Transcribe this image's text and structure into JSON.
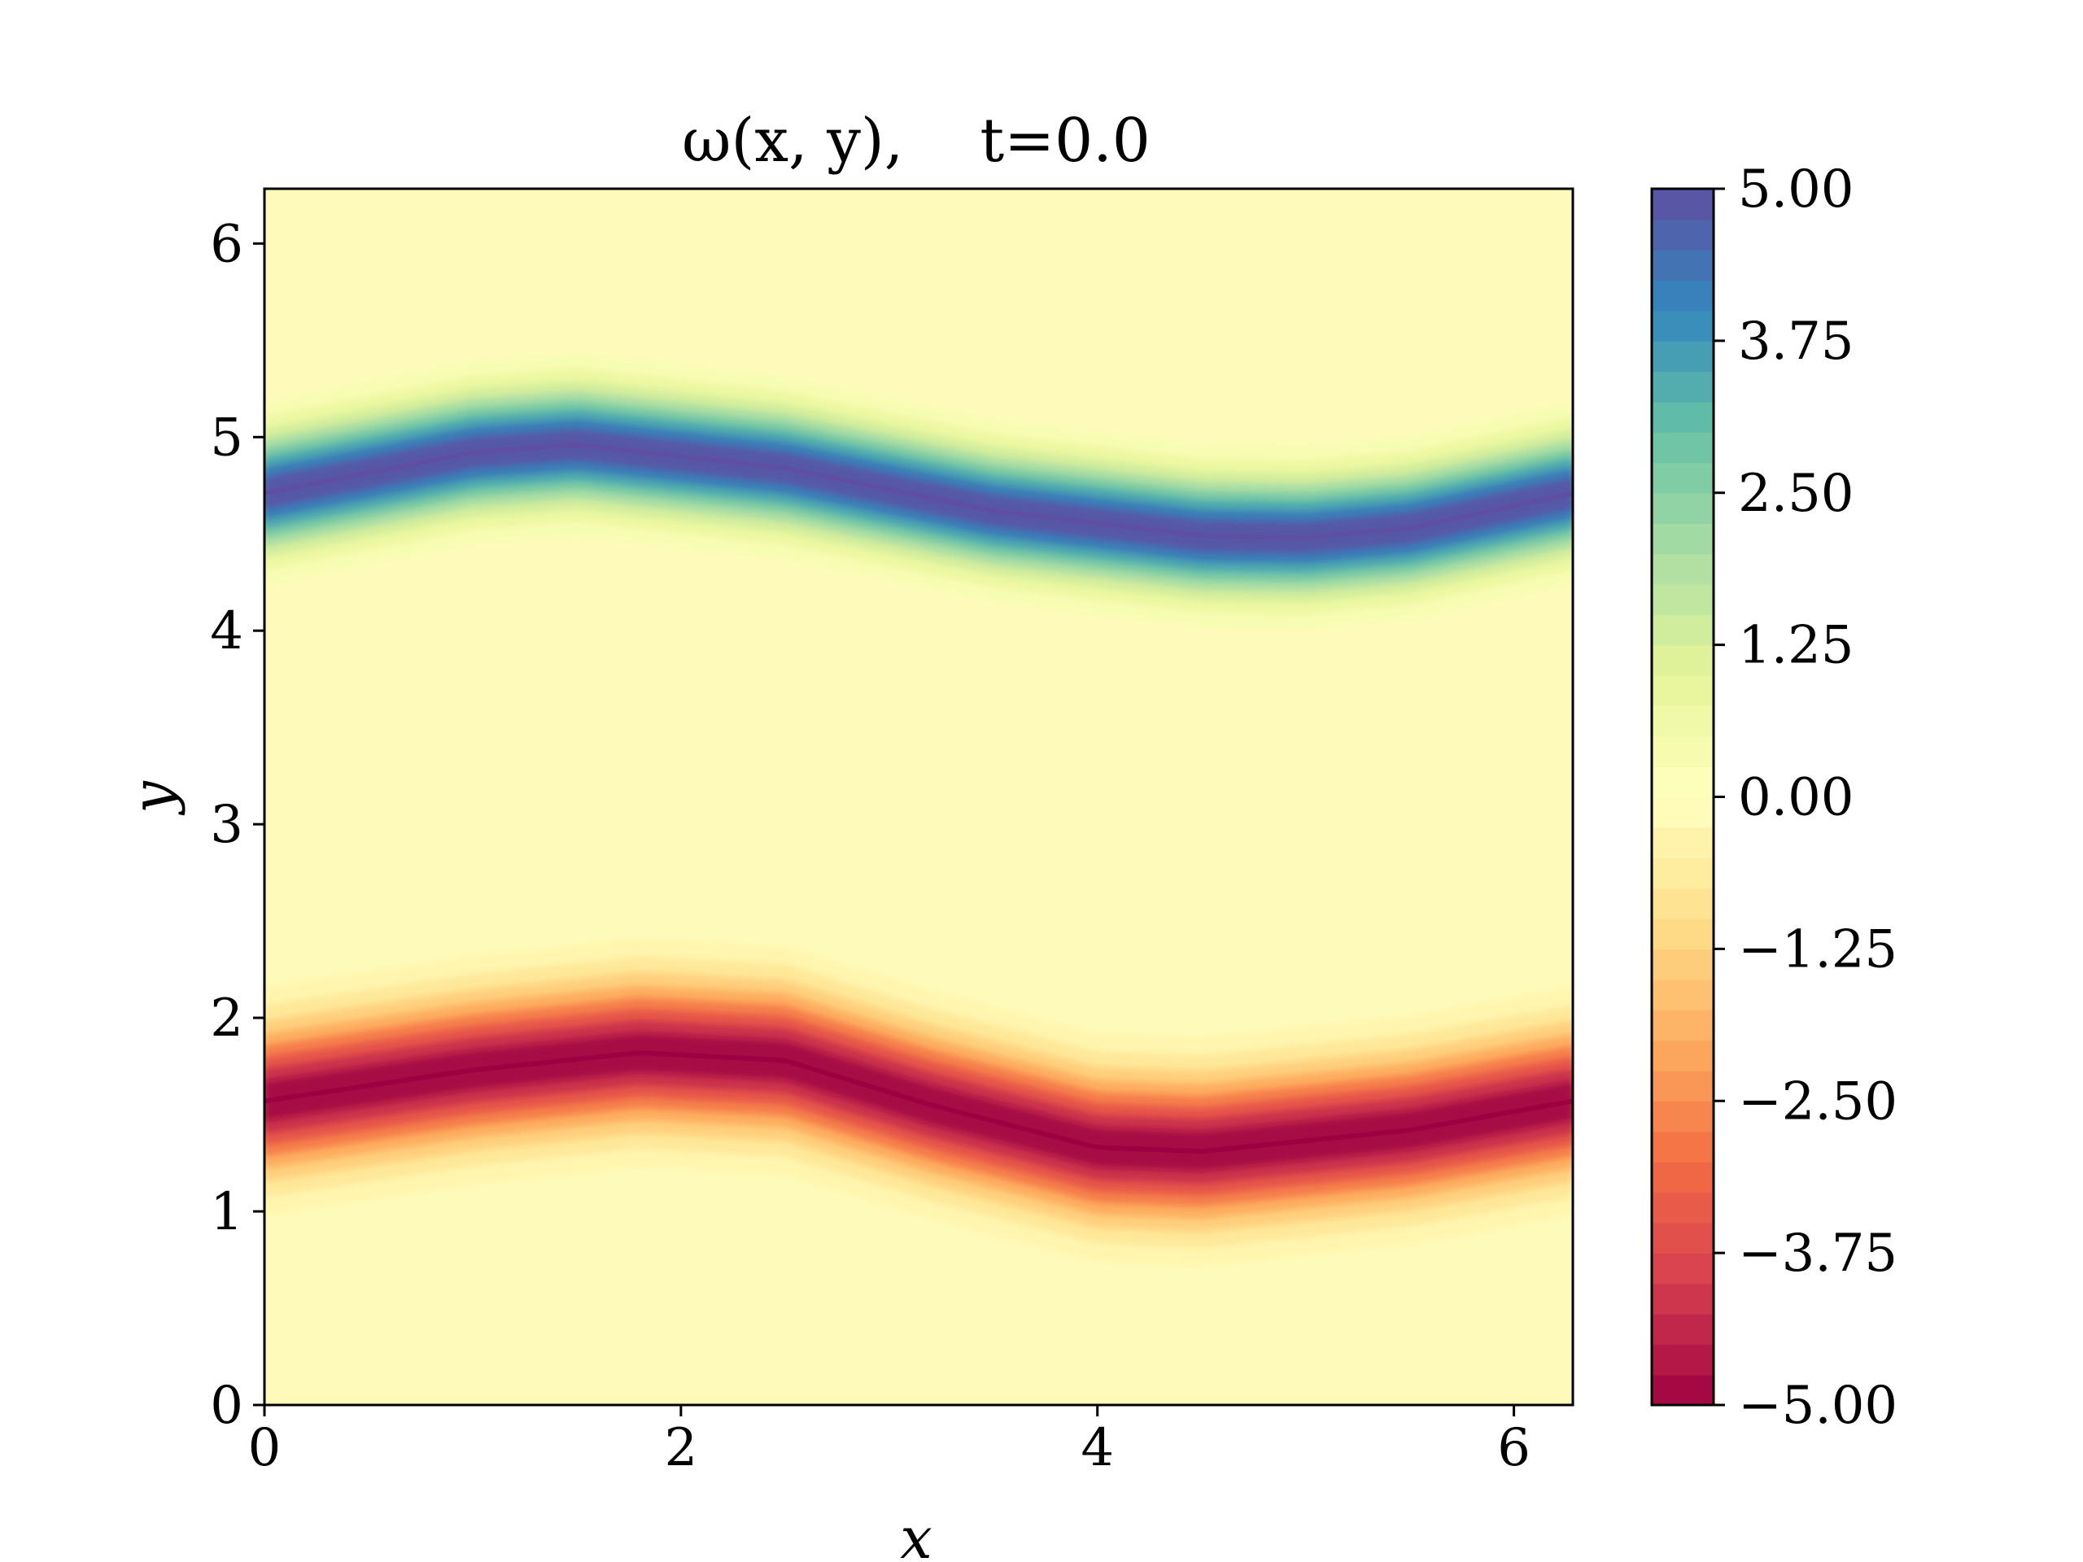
{
  "chart_data": {
    "type": "heatmap",
    "title": "ω(x, y),    t=0.0",
    "xlabel": "x",
    "ylabel": "y",
    "xlim": [
      0,
      6.283
    ],
    "ylim": [
      0,
      6.283
    ],
    "x_ticks": [
      "0",
      "2",
      "4",
      "6"
    ],
    "x_tick_values": [
      0,
      2,
      4,
      6
    ],
    "y_ticks": [
      "0",
      "1",
      "2",
      "3",
      "4",
      "5",
      "6"
    ],
    "y_tick_values": [
      0,
      1,
      2,
      3,
      4,
      5,
      6
    ],
    "colorbar": {
      "vmin": -5.0,
      "vmax": 5.0,
      "levels": 41,
      "tick_labels": [
        "5.00",
        "3.75",
        "2.50",
        "1.25",
        "0.00",
        "−1.25",
        "−2.50",
        "−3.75",
        "−5.00"
      ],
      "tick_values": [
        5.0,
        3.75,
        2.5,
        1.25,
        0.0,
        -1.25,
        -2.5,
        -3.75,
        -5.0
      ],
      "colormap": "Spectral",
      "colormap_stops": [
        "#9e0142",
        "#d53e4f",
        "#f46d43",
        "#fdae61",
        "#fee08b",
        "#ffffbf",
        "#e6f598",
        "#abdda4",
        "#66c2a5",
        "#3288bd",
        "#5e4fa2"
      ]
    },
    "series": [
      {
        "name": "",
        "sign": 1,
        "peak": 5.0,
        "centerline_x": [
          0,
          1.0,
          1.5,
          2.5,
          3.5,
          4.5,
          5.0,
          5.5,
          6.283
        ],
        "centerline_y": [
          4.71,
          4.92,
          4.96,
          4.84,
          4.62,
          4.49,
          4.48,
          4.53,
          4.71
        ],
        "thickness": 0.16
      },
      {
        "name": "",
        "sign": -1,
        "peak": -5.0,
        "centerline_x": [
          0,
          1.0,
          1.8,
          2.5,
          3.2,
          4.0,
          4.5,
          5.5,
          6.283
        ],
        "centerline_y": [
          1.57,
          1.73,
          1.82,
          1.78,
          1.55,
          1.33,
          1.31,
          1.42,
          1.57
        ],
        "thickness": 0.2
      }
    ]
  }
}
